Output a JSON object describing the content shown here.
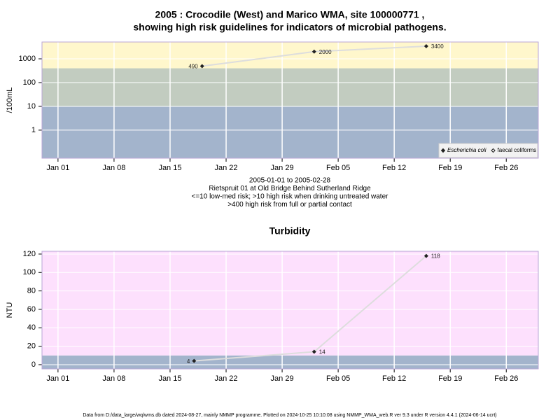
{
  "chart_data": [
    {
      "type": "line",
      "title": [
        "2005 : Crocodile (West) and Marico WMA, site 100000771 ,",
        "showing high risk guidelines for indicators of microbial pathogens."
      ],
      "ylabel": "/100mL",
      "notes": [
        "2005-01-01 to 2005-02-28",
        "Rietspruit 01 at Old Bridge Behind Sutherland Ridge",
        "<=10 low-med risk; >10 high risk when drinking untreated water",
        ">400 high risk from full or partial contact"
      ],
      "x": [
        "2005-01-19",
        "2005-02-02",
        "2005-02-16"
      ],
      "series": [
        {
          "name": "Escherichia coli",
          "color": "#222222",
          "values": [
            490,
            2000,
            3400
          ]
        },
        {
          "name": "faecal coliforms",
          "color": "#222222",
          "values": [
            null,
            null,
            null
          ]
        }
      ],
      "xlim": [
        "2004-12-30",
        "2005-03-02"
      ],
      "xticks": [
        {
          "value": "2005-01-01",
          "label": "Jan 01"
        },
        {
          "value": "2005-01-08",
          "label": "Jan 08"
        },
        {
          "value": "2005-01-15",
          "label": "Jan 15"
        },
        {
          "value": "2005-01-22",
          "label": "Jan 22"
        },
        {
          "value": "2005-01-29",
          "label": "Jan 29"
        },
        {
          "value": "2005-02-05",
          "label": "Feb 05"
        },
        {
          "value": "2005-02-12",
          "label": "Feb 12"
        },
        {
          "value": "2005-02-19",
          "label": "Feb 19"
        },
        {
          "value": "2005-02-26",
          "label": "Feb 26"
        }
      ],
      "log_y": true,
      "ylim": [
        0.066,
        5100
      ],
      "yticks": [
        1,
        10,
        100,
        1000
      ],
      "bands": [
        {
          "max": 10,
          "color": "#a3b4cc"
        },
        {
          "max": 400,
          "color": "#c2ccc0"
        },
        {
          "max": null,
          "color": "#fff7cc"
        }
      ],
      "grid": true,
      "legend": "bottom-right"
    },
    {
      "type": "line",
      "title": "Turbidity",
      "ylabel": "NTU",
      "x": [
        "2005-01-18",
        "2005-02-02",
        "2005-02-16"
      ],
      "series": [
        {
          "name": "Turbidity",
          "color": "#222222",
          "values": [
            4,
            14,
            118
          ]
        }
      ],
      "xlim": [
        "2004-12-30",
        "2005-03-02"
      ],
      "xticks": [
        {
          "value": "2005-01-01",
          "label": "Jan 01"
        },
        {
          "value": "2005-01-08",
          "label": "Jan 08"
        },
        {
          "value": "2005-01-15",
          "label": "Jan 15"
        },
        {
          "value": "2005-01-22",
          "label": "Jan 22"
        },
        {
          "value": "2005-01-29",
          "label": "Jan 29"
        },
        {
          "value": "2005-02-05",
          "label": "Feb 05"
        },
        {
          "value": "2005-02-12",
          "label": "Feb 12"
        },
        {
          "value": "2005-02-19",
          "label": "Feb 19"
        },
        {
          "value": "2005-02-26",
          "label": "Feb 26"
        }
      ],
      "log_y": false,
      "ylim": [
        -4.6,
        123
      ],
      "yticks": [
        0,
        20,
        40,
        60,
        80,
        100,
        120
      ],
      "bands": [
        {
          "max": 10,
          "color": "#a3b4cc"
        },
        {
          "max": null,
          "color": "#fde0fd"
        }
      ],
      "grid": true
    }
  ],
  "footer": "Data from D:/data_large/wq/wms.db dated 2024-08-27, mainly NMMP programme. Plotted on 2024-10-25 10:10:08 using NMMP_WMA_web.R ver 9.3 under R version 4.4.1 (2024-06-14 ucrt)"
}
